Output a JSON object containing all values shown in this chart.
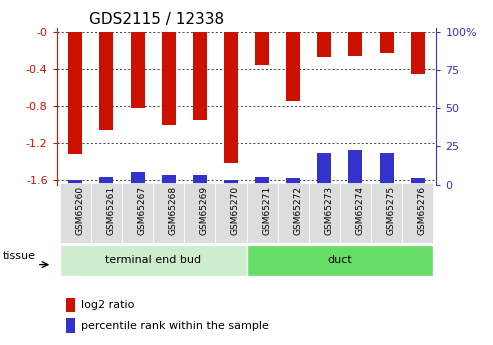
{
  "title": "GDS2115 / 12338",
  "categories": [
    "GSM65260",
    "GSM65261",
    "GSM65267",
    "GSM65268",
    "GSM65269",
    "GSM65270",
    "GSM65271",
    "GSM65272",
    "GSM65273",
    "GSM65274",
    "GSM65275",
    "GSM65276"
  ],
  "log2_ratio": [
    -1.32,
    -1.06,
    -0.82,
    -1.0,
    -0.95,
    -1.42,
    -0.35,
    -0.75,
    -0.27,
    -0.26,
    -0.23,
    -0.45
  ],
  "percentile_rank": [
    3,
    5,
    8,
    6,
    6,
    3,
    5,
    4,
    20,
    22,
    20,
    4
  ],
  "bar_color": "#cc1100",
  "blue_color": "#3333cc",
  "ylim_left": [
    -1.65,
    0.05
  ],
  "ylim_right": [
    -1.65,
    0.05
  ],
  "right_ticks_pct": [
    0,
    25,
    50,
    75,
    100
  ],
  "right_ticks_log2": [
    -1.65,
    -1.2375,
    -0.825,
    -0.4125,
    0.0
  ],
  "left_ticks": [
    -1.6,
    -1.2,
    -0.8,
    -0.4,
    0.0
  ],
  "groups": [
    {
      "label": "terminal end bud",
      "start": 0,
      "end": 6,
      "color": "#cceecc"
    },
    {
      "label": "duct",
      "start": 6,
      "end": 12,
      "color": "#66dd66"
    }
  ],
  "tissue_label": "tissue",
  "legend_log2": "log2 ratio",
  "legend_pct": "percentile rank within the sample",
  "bar_width": 0.45,
  "left_axis_color": "#cc1100",
  "right_axis_color": "#3333cc",
  "background_color": "#ffffff",
  "tick_bg_color": "#dddddd",
  "tick_label_fontsize": 6.5,
  "title_fontsize": 11
}
